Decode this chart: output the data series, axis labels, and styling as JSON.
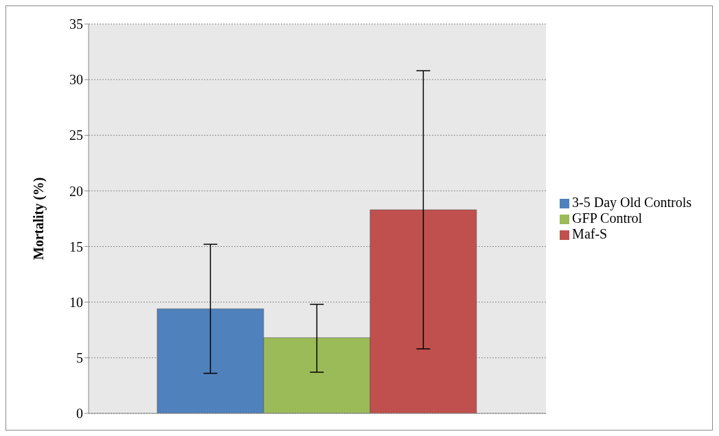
{
  "chart_data": {
    "type": "bar",
    "ylabel": "Mortality (%)",
    "categories": [
      null
    ],
    "series": [
      {
        "name": "3-5 Day Old Controls",
        "color": "#4f81bd",
        "values": [
          9.4
        ],
        "errors": [
          [
            3.6,
            15.2
          ]
        ]
      },
      {
        "name": "GFP Control",
        "color": "#9bbb59",
        "values": [
          6.8
        ],
        "errors": [
          [
            3.7,
            9.8
          ]
        ]
      },
      {
        "name": "Maf-S",
        "color": "#c0504d",
        "values": [
          18.3
        ],
        "errors": [
          [
            5.8,
            30.8
          ]
        ]
      }
    ],
    "ylim": [
      0,
      35
    ],
    "yticks": [
      0,
      5,
      10,
      15,
      20,
      25,
      30,
      35
    ],
    "grid": "y",
    "legend": "right"
  }
}
